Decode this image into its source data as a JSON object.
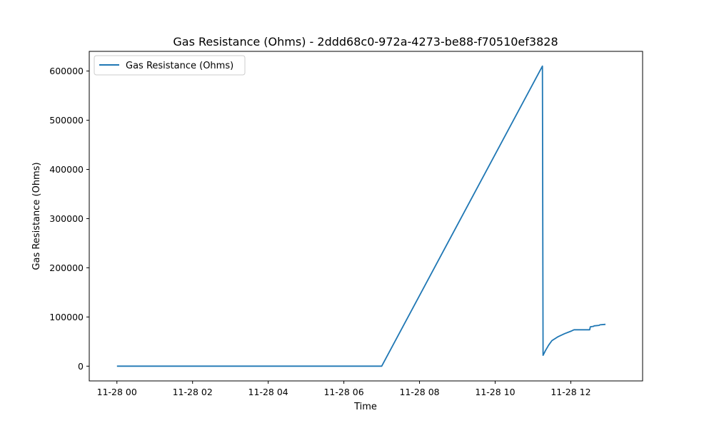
{
  "chart_data": {
    "type": "line",
    "title": "Gas Resistance (Ohms) - 2ddd68c0-972a-4273-be88-f70510ef3828",
    "xlabel": "Time",
    "ylabel": "Gas Resistance (Ohms)",
    "x_ticks": [
      "11-28 00",
      "11-28 02",
      "11-28 04",
      "11-28 06",
      "11-28 08",
      "11-28 10",
      "11-28 12"
    ],
    "y_ticks": [
      "0",
      "100000",
      "200000",
      "300000",
      "400000",
      "500000",
      "600000"
    ],
    "xlim": [
      "11-28 00:00",
      "11-28 13:10"
    ],
    "ylim": [
      -30000,
      640000
    ],
    "grid": false,
    "legend_position": "top-left",
    "series": [
      {
        "name": "Gas Resistance (Ohms)",
        "color": "#1f77b4",
        "x": [
          "11-28 00:00",
          "11-28 07:00",
          "11-28 11:15",
          "11-28 11:16",
          "11-28 11:20",
          "11-28 11:25",
          "11-28 11:30",
          "11-28 11:40",
          "11-28 11:50",
          "11-28 12:00",
          "11-28 12:05",
          "11-28 12:30",
          "11-28 12:31",
          "11-28 12:36",
          "11-28 12:37",
          "11-28 12:45",
          "11-28 12:46",
          "11-28 12:55"
        ],
        "y": [
          0,
          0,
          610000,
          22000,
          32000,
          43000,
          52000,
          60000,
          66000,
          71000,
          74000,
          74000,
          80000,
          81000,
          82000,
          83000,
          84000,
          85000
        ]
      }
    ]
  }
}
